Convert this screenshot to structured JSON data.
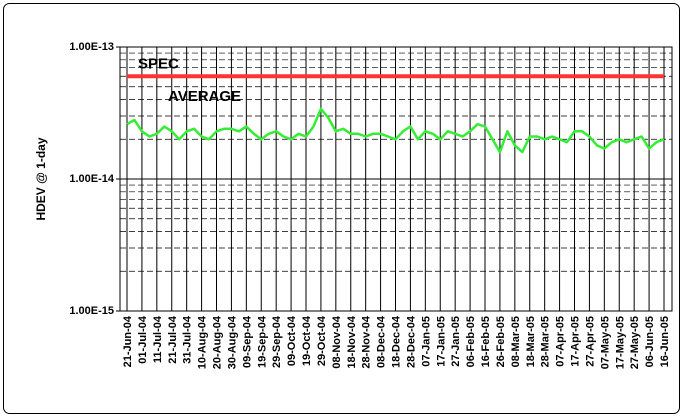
{
  "chart_data": {
    "type": "line",
    "y_label": "HDEV @ 1-day",
    "log_y": true,
    "grid": true,
    "ylim": [
      1e-15,
      1e-13
    ],
    "yticks": [
      {
        "value": 1e-15,
        "label": "1.00E-15"
      },
      {
        "value": 1e-14,
        "label": "1.00E-14"
      },
      {
        "value": 1e-13,
        "label": "1.00E-13"
      }
    ],
    "xticks": [
      "21-Jun-04",
      "01-Jul-04",
      "11-Jul-04",
      "21-Jul-04",
      "31-Jul-04",
      "10-Aug-04",
      "20-Aug-04",
      "30-Aug-04",
      "09-Sep-04",
      "19-Sep-04",
      "29-Sep-04",
      "09-Oct-04",
      "19-Oct-04",
      "29-Oct-04",
      "08-Nov-04",
      "18-Nov-04",
      "28-Nov-04",
      "08-Dec-04",
      "18-Dec-04",
      "28-Dec-04",
      "07-Jan-05",
      "17-Jan-05",
      "27-Jan-05",
      "06-Feb-05",
      "16-Feb-05",
      "26-Feb-05",
      "08-Mar-05",
      "18-Mar-05",
      "28-Mar-05",
      "07-Apr-05",
      "17-Apr-05",
      "27-Apr-05",
      "07-May-05",
      "17-May-05",
      "27-May-05",
      "06-Jun-05",
      "16-Jun-05"
    ],
    "series": [
      {
        "name": "SPEC",
        "color": "#ff3333",
        "x": [
          "21-Jun-04",
          "16-Jun-05"
        ],
        "values": [
          6e-14,
          6e-14
        ]
      },
      {
        "name": "AVERAGE",
        "color": "#33ee33",
        "x": [
          "21-Jun-04",
          "26-Jun-04",
          "01-Jul-04",
          "06-Jul-04",
          "11-Jul-04",
          "16-Jul-04",
          "21-Jul-04",
          "26-Jul-04",
          "31-Jul-04",
          "05-Aug-04",
          "10-Aug-04",
          "15-Aug-04",
          "20-Aug-04",
          "25-Aug-04",
          "30-Aug-04",
          "04-Sep-04",
          "09-Sep-04",
          "14-Sep-04",
          "19-Sep-04",
          "24-Sep-04",
          "29-Sep-04",
          "04-Oct-04",
          "09-Oct-04",
          "14-Oct-04",
          "19-Oct-04",
          "24-Oct-04",
          "29-Oct-04",
          "03-Nov-04",
          "08-Nov-04",
          "13-Nov-04",
          "18-Nov-04",
          "23-Nov-04",
          "28-Nov-04",
          "03-Dec-04",
          "08-Dec-04",
          "13-Dec-04",
          "18-Dec-04",
          "23-Dec-04",
          "28-Dec-04",
          "02-Jan-05",
          "07-Jan-05",
          "12-Jan-05",
          "17-Jan-05",
          "22-Jan-05",
          "27-Jan-05",
          "01-Feb-05",
          "06-Feb-05",
          "11-Feb-05",
          "16-Feb-05",
          "21-Feb-05",
          "26-Feb-05",
          "03-Mar-05",
          "08-Mar-05",
          "13-Mar-05",
          "18-Mar-05",
          "23-Mar-05",
          "28-Mar-05",
          "02-Apr-05",
          "07-Apr-05",
          "12-Apr-05",
          "17-Apr-05",
          "22-Apr-05",
          "27-Apr-05",
          "02-May-05",
          "07-May-05",
          "12-May-05",
          "17-May-05",
          "22-May-05",
          "27-May-05",
          "01-Jun-05",
          "06-Jun-05",
          "11-Jun-05",
          "16-Jun-05"
        ],
        "values": [
          2.6e-14,
          2.8e-14,
          2.3e-14,
          2.1e-14,
          2.2e-14,
          2.5e-14,
          2.3e-14,
          2e-14,
          2.3e-14,
          2.4e-14,
          2.1e-14,
          2e-14,
          2.3e-14,
          2.4e-14,
          2.4e-14,
          2.3e-14,
          2.5e-14,
          2.2e-14,
          2e-14,
          2.2e-14,
          2.3e-14,
          2.1e-14,
          2e-14,
          2.2e-14,
          2.1e-14,
          2.5e-14,
          3.4e-14,
          2.9e-14,
          2.3e-14,
          2.4e-14,
          2.2e-14,
          2.2e-14,
          2.1e-14,
          2.2e-14,
          2.2e-14,
          2.1e-14,
          2e-14,
          2.3e-14,
          2.5e-14,
          2e-14,
          2.3e-14,
          2.2e-14,
          2e-14,
          2.3e-14,
          2.2e-14,
          2.1e-14,
          2.3e-14,
          2.6e-14,
          2.5e-14,
          2e-14,
          1.6e-14,
          2.3e-14,
          1.8e-14,
          1.6e-14,
          2.1e-14,
          2.1e-14,
          2e-14,
          2.1e-14,
          2e-14,
          1.9e-14,
          2.3e-14,
          2.3e-14,
          2.1e-14,
          1.8e-14,
          1.7e-14,
          1.9e-14,
          2e-14,
          1.9e-14,
          2e-14,
          2.1e-14,
          1.7e-14,
          1.9e-14,
          2e-14
        ]
      }
    ]
  }
}
